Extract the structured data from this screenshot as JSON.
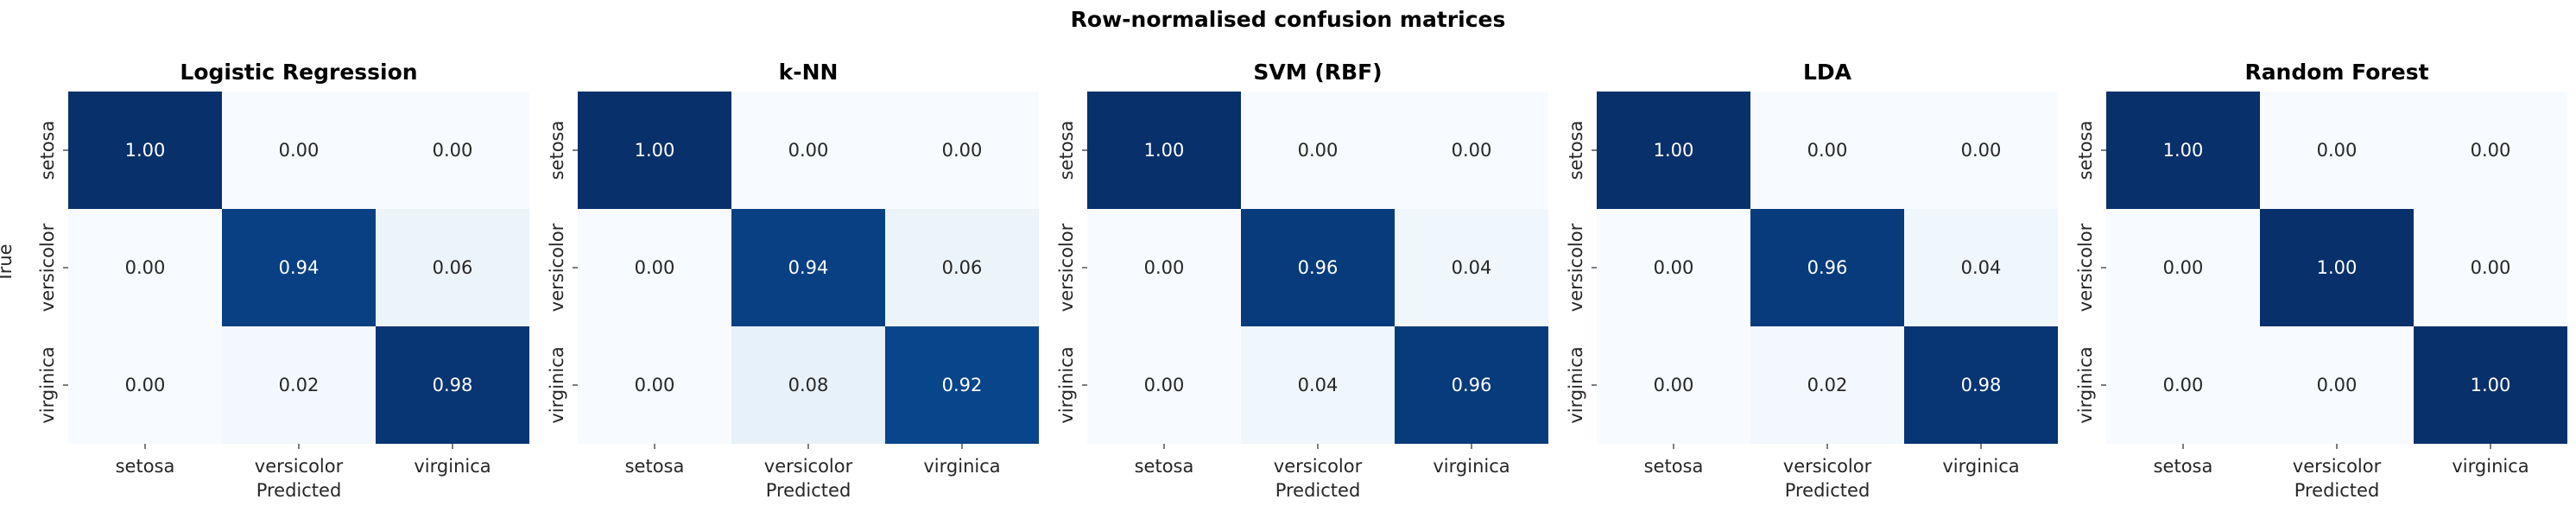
{
  "suptitle": "Row-normalised confusion matrices",
  "y_axis_label": "True",
  "x_axis_label": "Predicted",
  "colors": {
    "low": "#f7fbff",
    "high": "#08306b",
    "text_light": "#ffffff",
    "text_dark": "#262626"
  },
  "chart_data": [
    {
      "type": "heatmap",
      "title": "Logistic Regression",
      "xlabel": "Predicted",
      "ylabel": "True",
      "categories": [
        "setosa",
        "versicolor",
        "virginica"
      ],
      "values": [
        [
          1.0,
          0.0,
          0.0
        ],
        [
          0.0,
          0.94,
          0.06
        ],
        [
          0.0,
          0.02,
          0.98
        ]
      ],
      "labels": [
        [
          "1.00",
          "0.00",
          "0.00"
        ],
        [
          "0.00",
          "0.94",
          "0.06"
        ],
        [
          "0.00",
          "0.02",
          "0.98"
        ]
      ]
    },
    {
      "type": "heatmap",
      "title": "k-NN",
      "xlabel": "Predicted",
      "ylabel": "",
      "categories": [
        "setosa",
        "versicolor",
        "virginica"
      ],
      "values": [
        [
          1.0,
          0.0,
          0.0
        ],
        [
          0.0,
          0.94,
          0.06
        ],
        [
          0.0,
          0.08,
          0.92
        ]
      ],
      "labels": [
        [
          "1.00",
          "0.00",
          "0.00"
        ],
        [
          "0.00",
          "0.94",
          "0.06"
        ],
        [
          "0.00",
          "0.08",
          "0.92"
        ]
      ]
    },
    {
      "type": "heatmap",
      "title": "SVM (RBF)",
      "xlabel": "Predicted",
      "ylabel": "",
      "categories": [
        "setosa",
        "versicolor",
        "virginica"
      ],
      "values": [
        [
          1.0,
          0.0,
          0.0
        ],
        [
          0.0,
          0.96,
          0.04
        ],
        [
          0.0,
          0.04,
          0.96
        ]
      ],
      "labels": [
        [
          "1.00",
          "0.00",
          "0.00"
        ],
        [
          "0.00",
          "0.96",
          "0.04"
        ],
        [
          "0.00",
          "0.04",
          "0.96"
        ]
      ]
    },
    {
      "type": "heatmap",
      "title": "LDA",
      "xlabel": "Predicted",
      "ylabel": "",
      "categories": [
        "setosa",
        "versicolor",
        "virginica"
      ],
      "values": [
        [
          1.0,
          0.0,
          0.0
        ],
        [
          0.0,
          0.96,
          0.04
        ],
        [
          0.0,
          0.02,
          0.98
        ]
      ],
      "labels": [
        [
          "1.00",
          "0.00",
          "0.00"
        ],
        [
          "0.00",
          "0.96",
          "0.04"
        ],
        [
          "0.00",
          "0.02",
          "0.98"
        ]
      ]
    },
    {
      "type": "heatmap",
      "title": "Random Forest",
      "xlabel": "Predicted",
      "ylabel": "",
      "categories": [
        "setosa",
        "versicolor",
        "virginica"
      ],
      "values": [
        [
          1.0,
          0.0,
          0.0
        ],
        [
          0.0,
          1.0,
          0.0
        ],
        [
          0.0,
          0.0,
          1.0
        ]
      ],
      "labels": [
        [
          "1.00",
          "0.00",
          "0.00"
        ],
        [
          "0.00",
          "1.00",
          "0.00"
        ],
        [
          "0.00",
          "0.00",
          "1.00"
        ]
      ]
    }
  ]
}
